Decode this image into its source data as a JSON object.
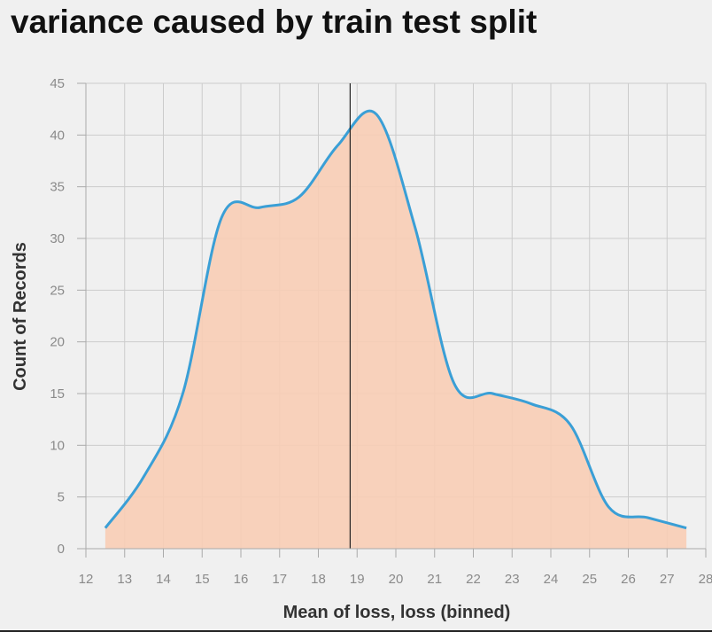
{
  "chart_data": {
    "type": "area",
    "title": "variance caused by train test split",
    "xlabel": "Mean of loss, loss (binned)",
    "ylabel": "Count of Records",
    "xlim": [
      12,
      28
    ],
    "ylim": [
      0,
      45
    ],
    "x_ticks": [
      12,
      13,
      14,
      15,
      16,
      17,
      18,
      19,
      20,
      21,
      22,
      23,
      24,
      25,
      26,
      27,
      28
    ],
    "y_ticks": [
      0,
      5,
      10,
      15,
      20,
      25,
      30,
      35,
      40,
      45
    ],
    "grid": true,
    "reference_line_x": 18.82,
    "series": [
      {
        "x": [
          12.5,
          13.5,
          14.5,
          15.5,
          16.5,
          17.5,
          18.5,
          19.5,
          20.5,
          21.5,
          22.5,
          23.5,
          24.5,
          25.5,
          26.5,
          27.5
        ],
        "values": [
          2,
          7,
          15,
          32,
          33,
          34,
          39,
          42,
          31,
          16,
          15,
          14,
          12,
          4,
          3,
          2
        ]
      }
    ],
    "colors": {
      "line": "#3a9fd6",
      "fill": "#f8cdb5",
      "reference": "#222222",
      "grid": "#cccccc"
    }
  }
}
